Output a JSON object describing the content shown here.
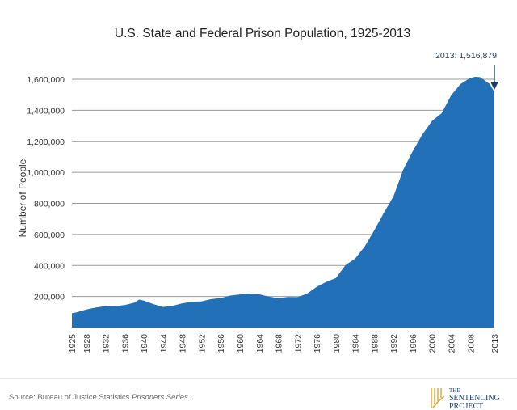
{
  "chart_data": {
    "type": "area",
    "title": "U.S. State and Federal Prison Population, 1925-2013",
    "ylabel": "Number of People",
    "xlabel": "",
    "xlim": [
      1925,
      2013
    ],
    "ylim": [
      0,
      1700000
    ],
    "grid": true,
    "color": "#2270b8",
    "x_ticks": [
      "1925",
      "1928",
      "1932",
      "1936",
      "1940",
      "1944",
      "1948",
      "1952",
      "1956",
      "1960",
      "1964",
      "1968",
      "1972",
      "1976",
      "1980",
      "1984",
      "1988",
      "1992",
      "1996",
      "2000",
      "2004",
      "2008",
      "2013"
    ],
    "y_ticks": [
      "200,000",
      "400,000",
      "600,000",
      "800,000",
      "1,000,000",
      "1,200,000",
      "1,400,000",
      "1,600,000"
    ],
    "y_tick_values": [
      200000,
      400000,
      600000,
      800000,
      1000000,
      1200000,
      1400000,
      1600000
    ],
    "x": [
      1925,
      1926,
      1928,
      1930,
      1932,
      1934,
      1936,
      1938,
      1939,
      1940,
      1942,
      1944,
      1946,
      1948,
      1950,
      1952,
      1954,
      1956,
      1958,
      1960,
      1962,
      1964,
      1966,
      1968,
      1970,
      1972,
      1974,
      1976,
      1978,
      1980,
      1982,
      1984,
      1986,
      1988,
      1990,
      1992,
      1994,
      1996,
      1998,
      2000,
      2002,
      2004,
      2006,
      2008,
      2009,
      2010,
      2012,
      2013
    ],
    "values": [
      91669,
      97991,
      116390,
      129453,
      137997,
      138316,
      145038,
      160285,
      179818,
      173706,
      150384,
      132456,
      140079,
      155977,
      166123,
      168233,
      182901,
      189565,
      205643,
      212953,
      218830,
      214336,
      199654,
      187914,
      196429,
      196092,
      218466,
      262833,
      294396,
      319598,
      402914,
      443398,
      522084,
      627600,
      739980,
      846277,
      1016691,
      1137722,
      1244554,
      1331278,
      1380516,
      1496629,
      1570861,
      1608282,
      1615487,
      1613803,
      1570397,
      1516879
    ],
    "annotation": "2013: 1,516,879",
    "annotation_color": "#1c3a63"
  },
  "footer": {
    "source_prefix": "Source: Bureau of Justice Statistics ",
    "source_italic": "Prisoners Series.",
    "logo_line1": "THE",
    "logo_line2": "SENTENCING",
    "logo_line3": "PROJECT",
    "logo_color": "#e8a53a"
  }
}
